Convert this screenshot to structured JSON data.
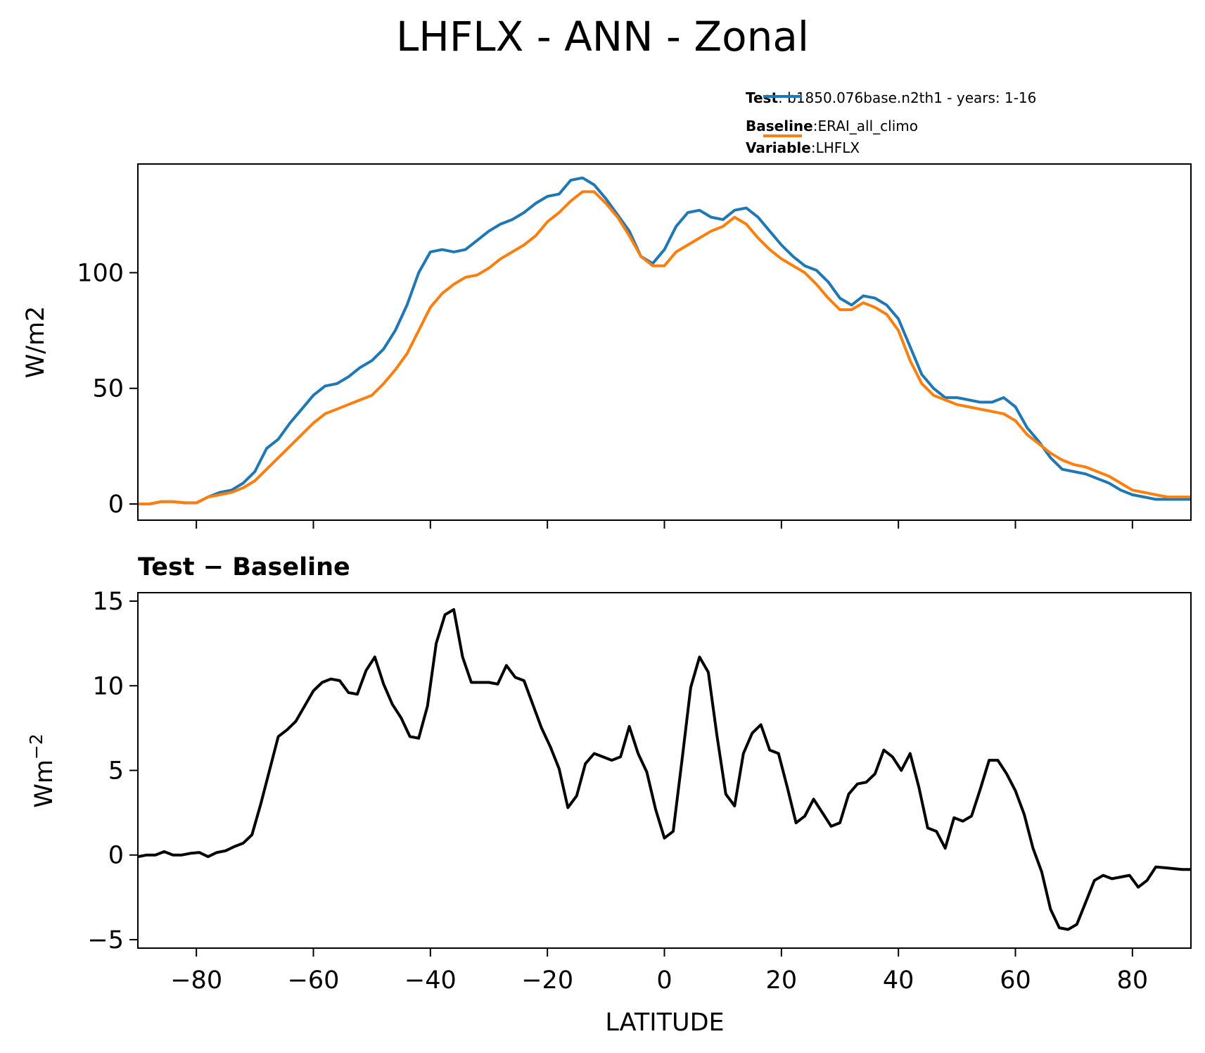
{
  "title": "LHFLX - ANN - Zonal",
  "legend": {
    "test_key": "Test",
    "test_value": "b1850.076base.n2th1 - years: 1-16",
    "baseline_key": "Baseline",
    "baseline_value": "ERAI_all_climo",
    "variable_key": "Variable",
    "variable_value": "LHFLX",
    "separator": ":"
  },
  "colors": {
    "test": "#1f77b4",
    "baseline": "#ff7f0e",
    "diff": "#000000"
  },
  "chart_data": [
    {
      "type": "line",
      "title": "",
      "xlabel": "",
      "ylabel": "W/m2",
      "xlim": [
        -90,
        90
      ],
      "ylim": [
        -7,
        147
      ],
      "xticks": [
        -80,
        -60,
        -40,
        -20,
        0,
        20,
        40,
        60,
        80
      ],
      "xtick_labels_shown": false,
      "yticks": [
        0,
        50,
        100
      ],
      "ytick_labels": [
        "0",
        "50",
        "100"
      ],
      "legend": {
        "placement": "above-right"
      },
      "series": [
        {
          "name": "Test",
          "x": [
            -90,
            -88,
            -86,
            -84,
            -82,
            -80,
            -78,
            -76,
            -74,
            -72,
            -70,
            -68,
            -66,
            -64,
            -62,
            -60,
            -58,
            -56,
            -54,
            -52,
            -50,
            -48,
            -46,
            -44,
            -42,
            -40,
            -38,
            -36,
            -34,
            -32,
            -30,
            -28,
            -26,
            -24,
            -22,
            -20,
            -18,
            -16,
            -14,
            -12,
            -10,
            -8,
            -6,
            -4,
            -2,
            0,
            2,
            4,
            6,
            8,
            10,
            12,
            14,
            16,
            18,
            20,
            22,
            24,
            26,
            28,
            30,
            32,
            34,
            36,
            38,
            40,
            42,
            44,
            46,
            48,
            50,
            52,
            54,
            56,
            58,
            60,
            62,
            64,
            66,
            68,
            70,
            72,
            74,
            76,
            78,
            80,
            82,
            84,
            86,
            88,
            90
          ],
          "y": [
            0,
            0,
            1,
            1,
            0.5,
            0.5,
            3,
            5,
            6,
            9,
            14,
            24,
            28,
            35,
            41,
            47,
            51,
            52,
            55,
            59,
            62,
            67,
            75,
            86,
            100,
            109,
            110,
            109,
            110,
            114,
            118,
            121,
            123,
            126,
            130,
            133,
            134,
            140,
            141,
            138,
            132,
            125,
            118,
            107,
            104,
            110,
            120,
            126,
            127,
            124,
            123,
            127,
            128,
            124,
            118,
            112,
            107,
            103,
            101,
            96,
            89,
            86,
            90,
            89,
            86,
            80,
            68,
            56,
            50,
            46,
            46,
            45,
            44,
            44,
            46,
            42,
            33,
            27,
            20,
            15,
            14,
            13,
            11,
            9,
            6,
            4,
            3,
            2,
            2,
            2,
            2
          ]
        },
        {
          "name": "Baseline",
          "x": [
            -90,
            -88,
            -86,
            -84,
            -82,
            -80,
            -78,
            -76,
            -74,
            -72,
            -70,
            -68,
            -66,
            -64,
            -62,
            -60,
            -58,
            -56,
            -54,
            -52,
            -50,
            -48,
            -46,
            -44,
            -42,
            -40,
            -38,
            -36,
            -34,
            -32,
            -30,
            -28,
            -26,
            -24,
            -22,
            -20,
            -18,
            -16,
            -14,
            -12,
            -10,
            -8,
            -6,
            -4,
            -2,
            0,
            2,
            4,
            6,
            8,
            10,
            12,
            14,
            16,
            18,
            20,
            22,
            24,
            26,
            28,
            30,
            32,
            34,
            36,
            38,
            40,
            42,
            44,
            46,
            48,
            50,
            52,
            54,
            56,
            58,
            60,
            62,
            64,
            66,
            68,
            70,
            72,
            74,
            76,
            78,
            80,
            82,
            84,
            86,
            88,
            90
          ],
          "y": [
            0,
            0,
            1,
            1,
            0.5,
            0.5,
            3,
            4,
            5,
            7,
            10,
            15,
            20,
            25,
            30,
            35,
            39,
            41,
            43,
            45,
            47,
            52,
            58,
            65,
            75,
            85,
            91,
            95,
            98,
            99,
            102,
            106,
            109,
            112,
            116,
            122,
            126,
            131,
            135,
            135,
            130,
            124,
            116,
            107,
            103,
            103,
            109,
            112,
            115,
            118,
            120,
            124,
            121,
            115,
            110,
            106,
            103,
            100,
            95,
            89,
            84,
            84,
            87,
            85,
            82,
            75,
            62,
            52,
            47,
            45,
            43,
            42,
            41,
            40,
            39,
            36,
            30,
            26,
            22,
            19,
            17,
            16,
            14,
            12,
            9,
            6,
            5,
            4,
            3,
            3,
            3
          ]
        }
      ]
    },
    {
      "type": "line",
      "title": "Test − Baseline",
      "xlabel": "LATITUDE",
      "ylabel": "Wm−2",
      "xlim": [
        -90,
        90
      ],
      "ylim": [
        -5.5,
        15.5
      ],
      "xticks": [
        -80,
        -60,
        -40,
        -20,
        0,
        20,
        40,
        60,
        80
      ],
      "xtick_labels": [
        "−80",
        "−60",
        "−40",
        "−20",
        "0",
        "20",
        "40",
        "60",
        "80"
      ],
      "yticks": [
        -5,
        0,
        5,
        10,
        15
      ],
      "ytick_labels": [
        "−5",
        "0",
        "5",
        "10",
        "15"
      ],
      "series": [
        {
          "name": "Test − Baseline",
          "x": [
            -90,
            -88.5,
            -87,
            -85.5,
            -84,
            -82.5,
            -81,
            -79.5,
            -78,
            -76.5,
            -75,
            -73.5,
            -72,
            -70.5,
            -69,
            -67.5,
            -66,
            -64.5,
            -63,
            -61.5,
            -60,
            -58.5,
            -57,
            -55.5,
            -54,
            -52.5,
            -51,
            -49.5,
            -48,
            -46.5,
            -45,
            -43.5,
            -42,
            -40.5,
            -39,
            -37.5,
            -36,
            -34.5,
            -33,
            -31.5,
            -30,
            -28.5,
            -27,
            -25.5,
            -24,
            -22.5,
            -21,
            -19.5,
            -18,
            -16.5,
            -15,
            -13.5,
            -12,
            -10.5,
            -9,
            -7.5,
            -6,
            -4.5,
            -3,
            -1.5,
            0,
            1.5,
            3,
            4.5,
            6,
            7.5,
            9,
            10.5,
            12,
            13.5,
            15,
            16.5,
            18,
            19.5,
            21,
            22.5,
            24,
            25.5,
            27,
            28.5,
            30,
            31.5,
            33,
            34.5,
            36,
            37.5,
            39,
            40.5,
            42,
            43.5,
            45,
            46.5,
            48,
            49.5,
            51,
            52.5,
            54,
            55.5,
            57,
            58.5,
            60,
            61.5,
            63,
            64.5,
            66,
            67.5,
            69,
            70.5,
            72,
            73.5,
            75,
            76.5,
            78,
            79.5,
            81,
            82.5,
            84,
            85.5,
            87,
            88.5,
            90
          ],
          "y": [
            -0.1,
            0,
            0,
            0.2,
            0,
            0,
            0.1,
            0.15,
            -0.1,
            0.15,
            0.25,
            0.5,
            0.7,
            1.2,
            3,
            5,
            7,
            7.4,
            7.9,
            8.8,
            9.7,
            10.2,
            10.4,
            10.3,
            9.6,
            9.5,
            10.9,
            11.7,
            10.1,
            8.9,
            8.1,
            7,
            6.9,
            8.8,
            12.5,
            14.2,
            14.5,
            11.7,
            10.2,
            10.2,
            10.2,
            10.1,
            11.2,
            10.5,
            10.3,
            8.9,
            7.5,
            6.4,
            5.1,
            2.8,
            3.5,
            5.4,
            6,
            5.8,
            5.6,
            5.8,
            7.6,
            6,
            4.9,
            2.7,
            1,
            1.4,
            5.6,
            9.9,
            11.7,
            10.8,
            7,
            3.6,
            2.9,
            6,
            7.2,
            7.7,
            6.2,
            6,
            4,
            1.9,
            2.3,
            3.3,
            2.5,
            1.7,
            1.9,
            3.6,
            4.2,
            4.3,
            4.8,
            6.2,
            5.8,
            5,
            6,
            4,
            1.6,
            1.4,
            0.4,
            2.2,
            2,
            2.3,
            3.9,
            5.6,
            5.6,
            4.8,
            3.8,
            2.4,
            0.4,
            -1,
            -3.2,
            -4.3,
            -4.4,
            -4.1,
            -2.8,
            -1.5,
            -1.2,
            -1.4,
            -1.3,
            -1.2,
            -1.9,
            -1.5,
            -0.7,
            -0.75,
            -0.8,
            -0.85,
            -0.85
          ]
        }
      ]
    }
  ]
}
